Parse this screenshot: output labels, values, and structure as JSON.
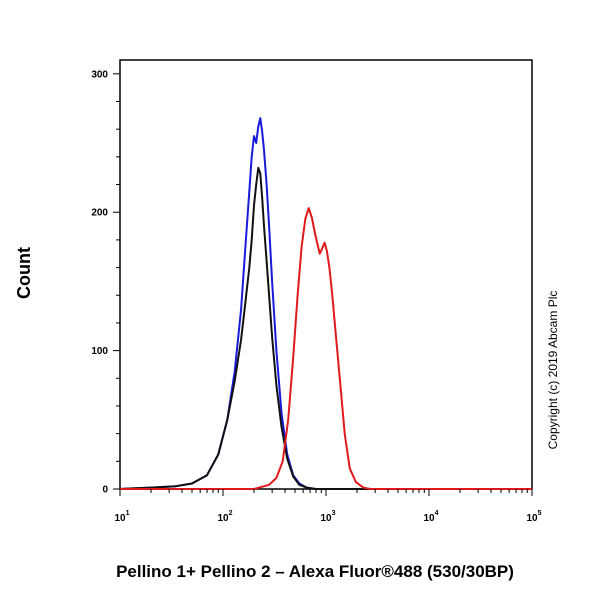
{
  "chart_data": {
    "type": "line",
    "xlabel": "Pellino 1+ Pellino 2 – Alexa Fluor®488 (530/30BP)",
    "ylabel": "Count",
    "xscale": "log",
    "xlim": [
      10,
      100000
    ],
    "ylim": [
      0,
      310
    ],
    "grid": false,
    "legend": "none",
    "annotation": "Copyright (c) 2019 Abcam Plc",
    "x_ticks": [
      {
        "value": 10,
        "base": "10",
        "exp": "1"
      },
      {
        "value": 100,
        "base": "10",
        "exp": "2"
      },
      {
        "value": 1000,
        "base": "10",
        "exp": "3"
      },
      {
        "value": 10000,
        "base": "10",
        "exp": "4"
      },
      {
        "value": 100000,
        "base": "10",
        "exp": "5"
      }
    ],
    "y_ticks": [
      {
        "value": 0,
        "label": "0"
      },
      {
        "value": 100,
        "label": "100"
      },
      {
        "value": 200,
        "label": "200"
      },
      {
        "value": 300,
        "label": "300"
      }
    ],
    "series": [
      {
        "color": "#1a1adb",
        "points": [
          [
            10,
            0
          ],
          [
            20,
            1
          ],
          [
            35,
            2
          ],
          [
            50,
            4
          ],
          [
            70,
            10
          ],
          [
            90,
            25
          ],
          [
            110,
            50
          ],
          [
            130,
            85
          ],
          [
            150,
            130
          ],
          [
            165,
            175
          ],
          [
            180,
            215
          ],
          [
            190,
            240
          ],
          [
            200,
            255
          ],
          [
            210,
            250
          ],
          [
            220,
            262
          ],
          [
            230,
            268
          ],
          [
            240,
            258
          ],
          [
            250,
            245
          ],
          [
            265,
            220
          ],
          [
            280,
            190
          ],
          [
            300,
            150
          ],
          [
            330,
            100
          ],
          [
            370,
            55
          ],
          [
            420,
            25
          ],
          [
            480,
            10
          ],
          [
            550,
            4
          ],
          [
            650,
            1
          ],
          [
            800,
            0
          ],
          [
            1000,
            0
          ],
          [
            3000,
            0
          ],
          [
            100000,
            0
          ]
        ]
      },
      {
        "color": "#111111",
        "points": [
          [
            10,
            0
          ],
          [
            20,
            1
          ],
          [
            35,
            2
          ],
          [
            50,
            4
          ],
          [
            70,
            10
          ],
          [
            90,
            25
          ],
          [
            110,
            50
          ],
          [
            130,
            78
          ],
          [
            150,
            108
          ],
          [
            165,
            135
          ],
          [
            180,
            160
          ],
          [
            190,
            180
          ],
          [
            200,
            205
          ],
          [
            210,
            220
          ],
          [
            220,
            232
          ],
          [
            230,
            228
          ],
          [
            240,
            210
          ],
          [
            250,
            190
          ],
          [
            265,
            165
          ],
          [
            280,
            140
          ],
          [
            300,
            110
          ],
          [
            330,
            75
          ],
          [
            370,
            45
          ],
          [
            420,
            22
          ],
          [
            480,
            9
          ],
          [
            550,
            3
          ],
          [
            650,
            1
          ],
          [
            800,
            0
          ],
          [
            1000,
            0
          ],
          [
            3000,
            0
          ],
          [
            100000,
            0
          ]
        ]
      },
      {
        "color": "#e01a1a",
        "points": [
          [
            10,
            0
          ],
          [
            200,
            0
          ],
          [
            280,
            3
          ],
          [
            330,
            8
          ],
          [
            380,
            20
          ],
          [
            430,
            50
          ],
          [
            480,
            95
          ],
          [
            530,
            140
          ],
          [
            580,
            175
          ],
          [
            630,
            195
          ],
          [
            680,
            203
          ],
          [
            730,
            196
          ],
          [
            780,
            185
          ],
          [
            820,
            178
          ],
          [
            870,
            170
          ],
          [
            920,
            174
          ],
          [
            970,
            178
          ],
          [
            1020,
            172
          ],
          [
            1080,
            160
          ],
          [
            1150,
            140
          ],
          [
            1250,
            110
          ],
          [
            1380,
            75
          ],
          [
            1520,
            40
          ],
          [
            1700,
            15
          ],
          [
            1950,
            5
          ],
          [
            2300,
            1
          ],
          [
            2700,
            0
          ],
          [
            100000,
            0
          ]
        ]
      }
    ]
  }
}
